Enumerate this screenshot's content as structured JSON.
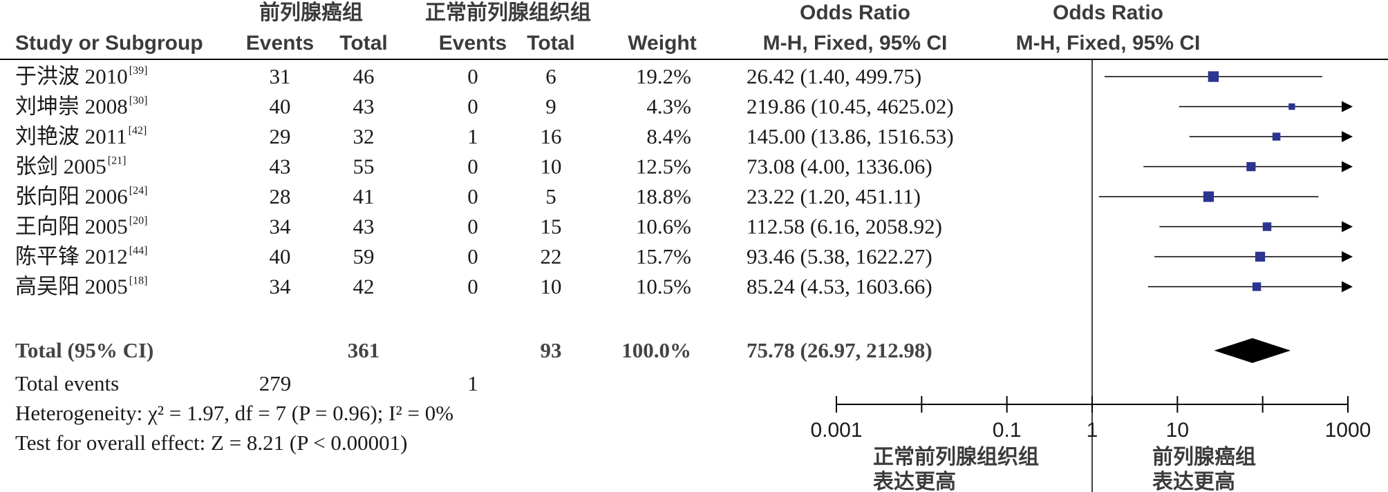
{
  "headers": {
    "group1": "前列腺癌组",
    "group2": "正常前列腺组织组",
    "or_title": "Odds Ratio",
    "or_title_plot": "Odds Ratio",
    "study": "Study or Subgroup",
    "events1": "Events",
    "total1": "Total",
    "events2": "Events",
    "total2": "Total",
    "weight": "Weight",
    "method": "M-H, Fixed, 95% CI",
    "method_plot": "M-H, Fixed, 95% CI"
  },
  "studies": [
    {
      "name": "于洪波 2010",
      "ref": "[39]",
      "e1": "31",
      "t1": "46",
      "e2": "0",
      "t2": "6",
      "weight": "19.2%",
      "ci": "26.42 (1.40, 499.75)"
    },
    {
      "name": "刘坤崇 2008",
      "ref": "[30]",
      "e1": "40",
      "t1": "43",
      "e2": "0",
      "t2": "9",
      "weight": "4.3%",
      "ci": "219.86 (10.45, 4625.02)"
    },
    {
      "name": "刘艳波 2011",
      "ref": "[42]",
      "e1": "29",
      "t1": "32",
      "e2": "1",
      "t2": "16",
      "weight": "8.4%",
      "ci": "145.00 (13.86, 1516.53)"
    },
    {
      "name": "张剑 2005",
      "ref": "[21]",
      "e1": "43",
      "t1": "55",
      "e2": "0",
      "t2": "10",
      "weight": "12.5%",
      "ci": "73.08 (4.00, 1336.06)"
    },
    {
      "name": "张向阳 2006",
      "ref": "[24]",
      "e1": "28",
      "t1": "41",
      "e2": "0",
      "t2": "5",
      "weight": "18.8%",
      "ci": "23.22 (1.20, 451.11)"
    },
    {
      "name": "王向阳 2005",
      "ref": "[20]",
      "e1": "34",
      "t1": "43",
      "e2": "0",
      "t2": "15",
      "weight": "10.6%",
      "ci": "112.58 (6.16, 2058.92)"
    },
    {
      "name": "陈平锋 2012",
      "ref": "[44]",
      "e1": "40",
      "t1": "59",
      "e2": "0",
      "t2": "22",
      "weight": "15.7%",
      "ci": "93.46 (5.38, 1622.27)"
    },
    {
      "name": "高吴阳 2005",
      "ref": "[18]",
      "e1": "34",
      "t1": "42",
      "e2": "0",
      "t2": "10",
      "weight": "10.5%",
      "ci": "85.24 (4.53, 1603.66)"
    }
  ],
  "total": {
    "label": "Total (95% CI)",
    "t1": "361",
    "t2": "93",
    "weight": "100.0%",
    "ci": "75.78 (26.97, 212.98)"
  },
  "total_events": {
    "label": "Total events",
    "e1": "279",
    "e2": "1"
  },
  "heterogeneity": "Heterogeneity: χ² = 1.97, df = 7 (P = 0.96); I² = 0%",
  "overall_effect": "Test for overall effect: Z = 8.21 (P < 0.00001)",
  "axis": {
    "ticks": [
      "0.001",
      "0.1",
      "1",
      "10",
      "1000"
    ],
    "left_label_1": "正常前列腺组织组",
    "left_label_2": "表达更高",
    "right_label_1": "前列腺癌组",
    "right_label_2": "表达更高"
  },
  "colors": {
    "marker": "#2b3590",
    "line": "#000000",
    "text": "#1a1a1a"
  },
  "chart_data": {
    "type": "forest",
    "scale": "log",
    "xlim": [
      0.001,
      1000
    ],
    "reference_line": 1,
    "tick_values": [
      0.001,
      0.1,
      1,
      10,
      1000
    ],
    "series": [
      {
        "label": "于洪波 2010",
        "or": 26.42,
        "lo": 1.4,
        "hi": 499.75,
        "weight": 19.2
      },
      {
        "label": "刘坤崇 2008",
        "or": 219.86,
        "lo": 10.45,
        "hi": 4625.02,
        "weight": 4.3
      },
      {
        "label": "刘艳波 2011",
        "or": 145.0,
        "lo": 13.86,
        "hi": 1516.53,
        "weight": 8.4
      },
      {
        "label": "张剑 2005",
        "or": 73.08,
        "lo": 4.0,
        "hi": 1336.06,
        "weight": 12.5
      },
      {
        "label": "张向阳 2006",
        "or": 23.22,
        "lo": 1.2,
        "hi": 451.11,
        "weight": 18.8
      },
      {
        "label": "王向阳 2005",
        "or": 112.58,
        "lo": 6.16,
        "hi": 2058.92,
        "weight": 10.6
      },
      {
        "label": "陈平锋 2012",
        "or": 93.46,
        "lo": 5.38,
        "hi": 1622.27,
        "weight": 15.7
      },
      {
        "label": "高吴阳 2005",
        "or": 85.24,
        "lo": 4.53,
        "hi": 1603.66,
        "weight": 10.5
      }
    ],
    "pooled": {
      "label": "Total (95% CI)",
      "or": 75.78,
      "lo": 26.97,
      "hi": 212.98
    }
  }
}
